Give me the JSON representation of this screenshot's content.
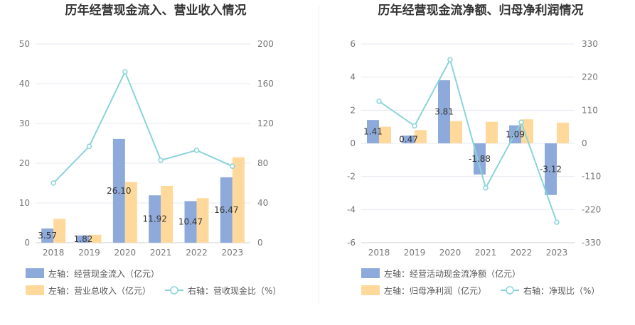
{
  "charts": [
    {
      "title": "历年经营现金流入、营业收入情况",
      "chart_data": {
        "type": "bar",
        "categories": [
          "2018",
          "2019",
          "2020",
          "2021",
          "2022",
          "2023"
        ],
        "ylim": [
          0,
          50
        ],
        "y2lim": [
          0,
          200
        ],
        "y_ticks": [
          "50",
          "40",
          "30",
          "20",
          "10",
          "0"
        ],
        "y2_ticks": [
          "200",
          "160",
          "120",
          "80",
          "40",
          "0"
        ],
        "series": [
          {
            "name": "左轴：经营现金流入（亿元）",
            "type": "bar",
            "axis": "left",
            "values": [
              3.57,
              1.82,
              26.1,
              11.92,
              10.47,
              16.47
            ],
            "labels": [
              "3.57",
              "1.82",
              "26.10",
              "11.92",
              "10.47",
              "16.47"
            ],
            "color": "#8eaadb"
          },
          {
            "name": "左轴：营业总收入（亿元）",
            "type": "bar",
            "axis": "left",
            "values": [
              6.0,
              2.0,
              15.3,
              14.3,
              11.2,
              21.5
            ],
            "color": "#ffd99b"
          },
          {
            "name": "右轴：营收现金比（%）",
            "type": "line",
            "axis": "right",
            "values": [
              60,
              97,
              172,
              83,
              93,
              77
            ],
            "color": "#8ad4d9"
          }
        ]
      }
    },
    {
      "title": "历年经营现金流净额、归母净利润情况",
      "chart_data": {
        "type": "bar",
        "categories": [
          "2018",
          "2019",
          "2020",
          "2021",
          "2022",
          "2023"
        ],
        "ylim": [
          -6,
          6
        ],
        "y2lim": [
          -330,
          330
        ],
        "y_ticks": [
          "6",
          "4",
          "2",
          "0",
          "-2",
          "-4",
          "-6"
        ],
        "y2_ticks": [
          "330",
          "220",
          "110",
          "0",
          "-110",
          "-220",
          "-330"
        ],
        "series": [
          {
            "name": "左轴：经营活动现金流净额（亿元）",
            "type": "bar",
            "axis": "left",
            "values": [
              1.41,
              0.47,
              3.81,
              -1.88,
              1.09,
              -3.12
            ],
            "labels": [
              "1.41",
              "0.47",
              "3.81",
              "-1.88",
              "1.09",
              "-3.12"
            ],
            "color": "#8eaadb"
          },
          {
            "name": "左轴：归母净利润（亿元）",
            "type": "bar",
            "axis": "left",
            "values": [
              1.0,
              0.8,
              1.35,
              1.3,
              1.45,
              1.25
            ],
            "color": "#ffd99b"
          },
          {
            "name": "右轴：净现比（%）",
            "type": "line",
            "axis": "right",
            "values": [
              140,
              58,
              278,
              -148,
              70,
              -262
            ],
            "color": "#8ad4d9"
          }
        ]
      }
    }
  ]
}
